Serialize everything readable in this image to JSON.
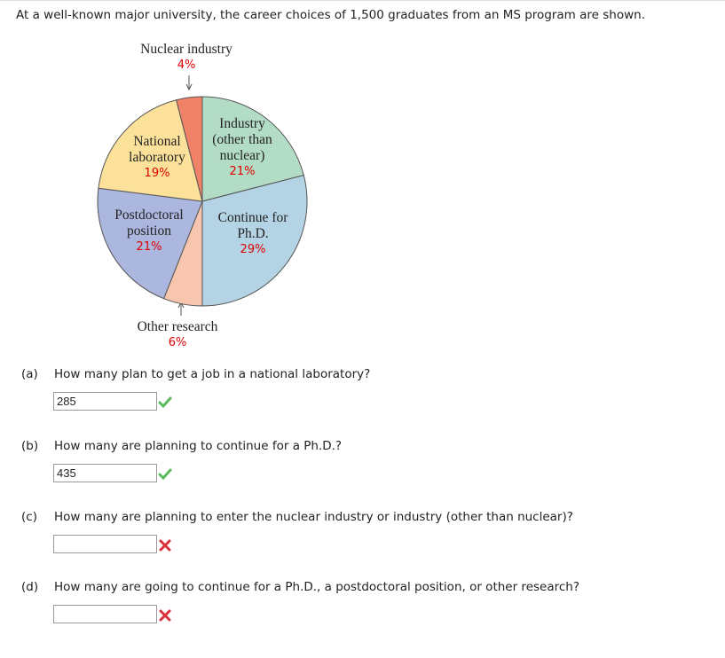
{
  "intro": "At a well-known major university, the career choices of 1,500 graduates from an MS program are shown.",
  "chart_data": {
    "type": "pie",
    "categories": [
      "Industry (other than nuclear)",
      "Continue for Ph.D.",
      "Other research",
      "Postdoctoral position",
      "National laboratory",
      "Nuclear industry"
    ],
    "values": [
      21,
      29,
      6,
      21,
      19,
      4
    ],
    "value_labels": [
      "21%",
      "29%",
      "6%",
      "21%",
      "19%",
      "4%"
    ],
    "colors": [
      "#b3dcc6",
      "#b4d4e6",
      "#f8c6ae",
      "#acb7df",
      "#fbe19a",
      "#f08267"
    ]
  },
  "questions": [
    {
      "letter": "(a)",
      "text": "How many plan to get a job in a national laboratory?",
      "answer": "285",
      "correct": true
    },
    {
      "letter": "(b)",
      "text": "How many are planning to continue for a Ph.D.?",
      "answer": "435",
      "correct": true
    },
    {
      "letter": "(c)",
      "text": "How many are planning to enter the nuclear industry or industry (other than nuclear)?",
      "correct": false
    },
    {
      "letter": "(d)",
      "text": "How many are going to continue for a Ph.D., a postdoctoral position, or other research?",
      "correct": false
    }
  ]
}
